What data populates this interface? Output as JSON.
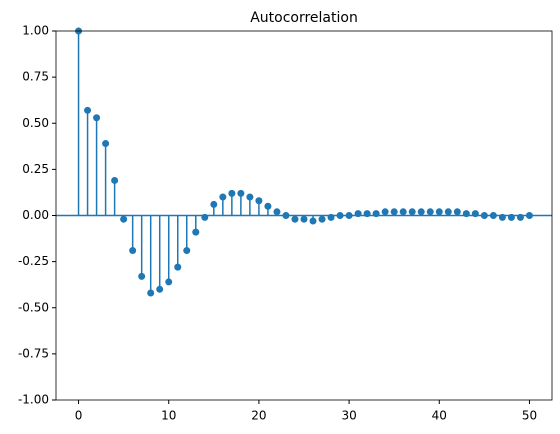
{
  "chart_data": {
    "type": "stem",
    "title": "Autocorrelation",
    "color": "#1f77b4",
    "x": [
      0,
      1,
      2,
      3,
      4,
      5,
      6,
      7,
      8,
      9,
      10,
      11,
      12,
      13,
      14,
      15,
      16,
      17,
      18,
      19,
      20,
      21,
      22,
      23,
      24,
      25,
      26,
      27,
      28,
      29,
      30,
      31,
      32,
      33,
      34,
      35,
      36,
      37,
      38,
      39,
      40,
      41,
      42,
      43,
      44,
      45,
      46,
      47,
      48,
      49,
      50
    ],
    "values": [
      1.0,
      0.57,
      0.53,
      0.39,
      0.19,
      -0.02,
      -0.19,
      -0.33,
      -0.42,
      -0.4,
      -0.36,
      -0.28,
      -0.19,
      -0.09,
      -0.01,
      0.06,
      0.1,
      0.12,
      0.12,
      0.1,
      0.08,
      0.05,
      0.02,
      0.0,
      -0.02,
      -0.02,
      -0.03,
      -0.02,
      -0.01,
      0.0,
      0.0,
      0.01,
      0.01,
      0.01,
      0.02,
      0.02,
      0.02,
      0.02,
      0.02,
      0.02,
      0.02,
      0.02,
      0.02,
      0.01,
      0.01,
      0.0,
      0.0,
      -0.01,
      -0.01,
      -0.01,
      0.0
    ],
    "xlim": [
      -2.5,
      52.5
    ],
    "xticks": [
      0,
      10,
      20,
      30,
      40,
      50
    ],
    "ylim": [
      -1,
      1
    ],
    "yticks": [
      {
        "value": -1,
        "label": "-1.00"
      },
      {
        "value": -0.75,
        "label": "-0.75"
      },
      {
        "value": -0.5,
        "label": "-0.50"
      },
      {
        "value": -0.25,
        "label": "-0.25"
      },
      {
        "value": 0,
        "label": "0.00"
      },
      {
        "value": 0.25,
        "label": "0.25"
      },
      {
        "value": 0.5,
        "label": "0.50"
      },
      {
        "value": 0.75,
        "label": "0.75"
      },
      {
        "value": 1,
        "label": "1.00"
      }
    ]
  }
}
